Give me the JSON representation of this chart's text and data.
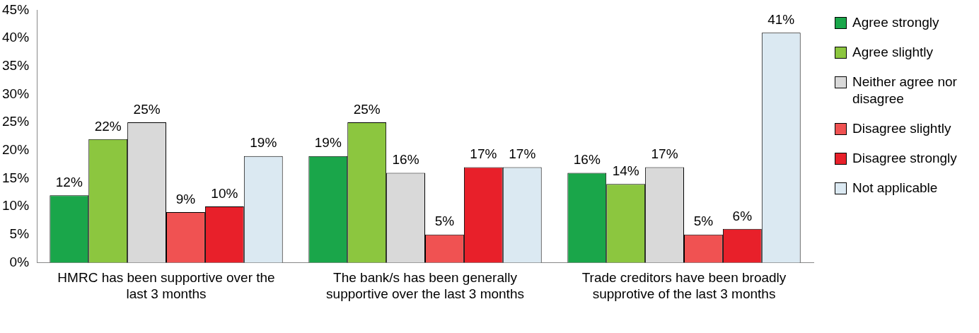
{
  "chart_data": {
    "type": "bar",
    "categories": [
      "HMRC has been supportive over the last 3 months",
      "The bank/s has been generally supportive over the last 3 months",
      "Trade creditors have been broadly supprotive of the last 3 months"
    ],
    "series": [
      {
        "name": "Agree strongly",
        "color": "#1aa64a",
        "values": [
          12,
          19,
          16
        ],
        "value_labels": [
          "12%",
          "19%",
          "16%"
        ]
      },
      {
        "name": "Agree slightly",
        "color": "#8cc63f",
        "values": [
          22,
          25,
          14
        ],
        "value_labels": [
          "22%",
          "25%",
          "14%"
        ]
      },
      {
        "name": "Neither agree nor disagree",
        "color": "#d9d9d9",
        "values": [
          25,
          16,
          17
        ],
        "value_labels": [
          "25%",
          "16%",
          "17%"
        ]
      },
      {
        "name": "Disagree slightly",
        "color": "#f05252",
        "values": [
          9,
          5,
          5
        ],
        "value_labels": [
          "9%",
          "5%",
          "5%"
        ]
      },
      {
        "name": "Disagree strongly",
        "color": "#e8202a",
        "values": [
          10,
          17,
          6
        ],
        "value_labels": [
          "10%",
          "17%",
          "6%"
        ]
      },
      {
        "name": "Not applicable",
        "color": "#dbe9f2",
        "values": [
          19,
          17,
          41
        ],
        "value_labels": [
          "19%",
          "17%",
          "41%"
        ]
      }
    ],
    "ylim": [
      0,
      45
    ],
    "yticks": [
      {
        "value": 0,
        "label": "0%"
      },
      {
        "value": 5,
        "label": "5%"
      },
      {
        "value": 10,
        "label": "10%"
      },
      {
        "value": 15,
        "label": "15%"
      },
      {
        "value": 20,
        "label": "20%"
      },
      {
        "value": 25,
        "label": "25%"
      },
      {
        "value": 30,
        "label": "30%"
      },
      {
        "value": 35,
        "label": "35%"
      },
      {
        "value": 40,
        "label": "40%"
      },
      {
        "value": 45,
        "label": "45%"
      }
    ],
    "grid": false,
    "legend": "right"
  }
}
